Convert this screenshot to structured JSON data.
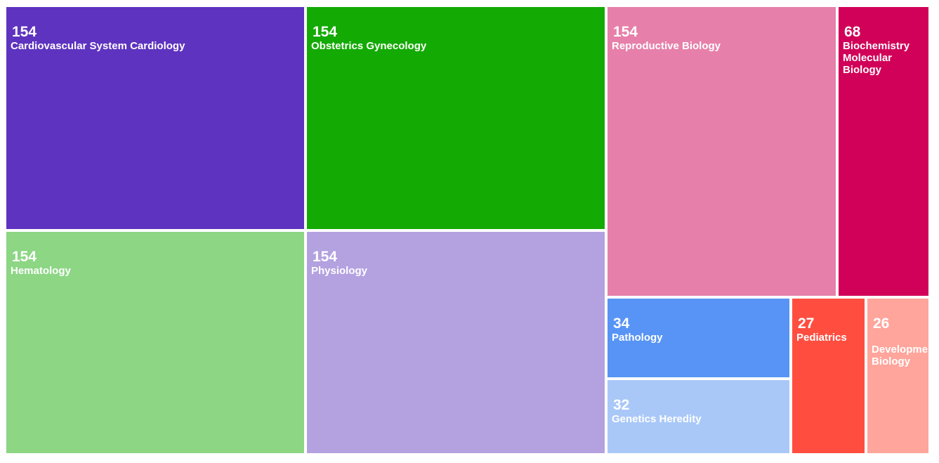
{
  "chart_data": {
    "type": "treemap",
    "categories": [
      "Cardiovascular System Cardiology",
      "Obstetrics Gynecology",
      "Hematology",
      "Physiology",
      "Reproductive Biology",
      "Biochemistry Molecular Biology",
      "Pathology",
      "Genetics Heredity",
      "Pediatrics",
      "Developmental Biology"
    ],
    "values": [
      154,
      154,
      154,
      154,
      154,
      68,
      34,
      32,
      27,
      26
    ],
    "colors": [
      "#5e33bf",
      "#13aa03",
      "#8cd684",
      "#b3a1e0",
      "#e680aa",
      "#d10058",
      "#5794f5",
      "#a9c8f8",
      "#ff4e40",
      "#ffa59c"
    ]
  }
}
